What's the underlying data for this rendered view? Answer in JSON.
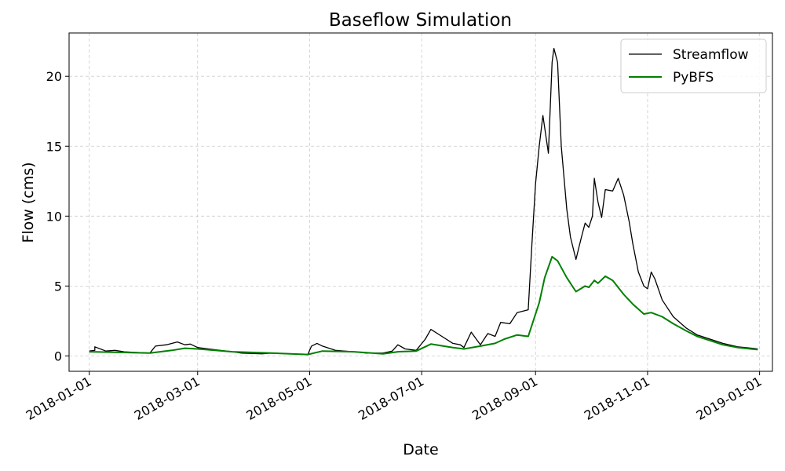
{
  "chart_data": {
    "type": "line",
    "title": "Baseflow Simulation",
    "xlabel": "Date",
    "ylabel": "Flow (cms)",
    "xlim": [
      "2017-12-21",
      "2019-01-08"
    ],
    "ylim": [
      -1.1,
      23.1
    ],
    "x_ticks": [
      "2018-01-01",
      "2018-03-01",
      "2018-05-01",
      "2018-07-01",
      "2018-09-01",
      "2018-11-01",
      "2019-01-01"
    ],
    "y_ticks": [
      0,
      5,
      10,
      15,
      20
    ],
    "grid": true,
    "legend": "upper right",
    "series": [
      {
        "name": "Streamflow",
        "color": "#000000",
        "points": [
          [
            "2018-01-01",
            0.35
          ],
          [
            "2018-01-04",
            0.4
          ],
          [
            "2018-01-10",
            0.35
          ],
          [
            "2018-01-15",
            0.4
          ],
          [
            "2018-01-20",
            0.3
          ],
          [
            "2018-01-27",
            0.25
          ],
          [
            "2018-02-03",
            0.2
          ],
          [
            "2018-02-06",
            0.7
          ],
          [
            "2018-02-12",
            0.8
          ],
          [
            "2018-02-18",
            1.0
          ],
          [
            "2018-02-22",
            0.8
          ],
          [
            "2018-02-25",
            0.85
          ],
          [
            "2018-03-01",
            0.6
          ],
          [
            "2018-03-10",
            0.45
          ],
          [
            "2018-03-20",
            0.3
          ],
          [
            "2018-03-25",
            0.2
          ],
          [
            "2018-04-05",
            0.15
          ],
          [
            "2018-04-10",
            0.2
          ],
          [
            "2018-04-20",
            0.15
          ],
          [
            "2018-04-30",
            0.1
          ],
          [
            "2018-05-02",
            0.7
          ],
          [
            "2018-05-05",
            0.9
          ],
          [
            "2018-05-08",
            0.7
          ],
          [
            "2018-05-15",
            0.4
          ],
          [
            "2018-05-25",
            0.3
          ],
          [
            "2018-06-01",
            0.2
          ],
          [
            "2018-06-10",
            0.2
          ],
          [
            "2018-06-15",
            0.35
          ],
          [
            "2018-06-18",
            0.8
          ],
          [
            "2018-06-22",
            0.5
          ],
          [
            "2018-06-28",
            0.4
          ],
          [
            "2018-07-03",
            1.2
          ],
          [
            "2018-07-06",
            1.9
          ],
          [
            "2018-07-12",
            1.4
          ],
          [
            "2018-07-18",
            0.9
          ],
          [
            "2018-07-22",
            0.8
          ],
          [
            "2018-07-24",
            0.6
          ],
          [
            "2018-07-28",
            1.7
          ],
          [
            "2018-08-02",
            0.8
          ],
          [
            "2018-08-06",
            1.6
          ],
          [
            "2018-08-10",
            1.4
          ],
          [
            "2018-08-13",
            2.4
          ],
          [
            "2018-08-18",
            2.3
          ],
          [
            "2018-08-22",
            3.1
          ],
          [
            "2018-08-28",
            3.3
          ],
          [
            "2018-08-30",
            7.9
          ],
          [
            "2018-09-01",
            12.3
          ],
          [
            "2018-09-03",
            15.0
          ],
          [
            "2018-09-05",
            17.2
          ],
          [
            "2018-09-08",
            14.5
          ],
          [
            "2018-09-10",
            21.0
          ],
          [
            "2018-09-11",
            22.0
          ],
          [
            "2018-09-13",
            21.0
          ],
          [
            "2018-09-15",
            15.0
          ],
          [
            "2018-09-18",
            10.5
          ],
          [
            "2018-09-20",
            8.5
          ],
          [
            "2018-09-23",
            6.9
          ],
          [
            "2018-09-26",
            8.5
          ],
          [
            "2018-09-28",
            9.5
          ],
          [
            "2018-09-30",
            9.2
          ],
          [
            "2018-10-02",
            10.0
          ],
          [
            "2018-10-03",
            12.7
          ],
          [
            "2018-10-05",
            11.0
          ],
          [
            "2018-10-07",
            9.9
          ],
          [
            "2018-10-09",
            11.9
          ],
          [
            "2018-10-13",
            11.8
          ],
          [
            "2018-10-16",
            12.7
          ],
          [
            "2018-10-19",
            11.5
          ],
          [
            "2018-10-22",
            9.6
          ],
          [
            "2018-10-24",
            8.0
          ],
          [
            "2018-10-27",
            6.0
          ],
          [
            "2018-10-30",
            5.0
          ],
          [
            "2018-11-01",
            4.8
          ],
          [
            "2018-11-03",
            6.0
          ],
          [
            "2018-11-05",
            5.5
          ],
          [
            "2018-11-09",
            4.0
          ],
          [
            "2018-11-15",
            2.8
          ],
          [
            "2018-11-22",
            2.0
          ],
          [
            "2018-11-28",
            1.5
          ],
          [
            "2018-12-05",
            1.2
          ],
          [
            "2018-12-12",
            0.9
          ],
          [
            "2018-12-20",
            0.65
          ],
          [
            "2018-12-28",
            0.55
          ],
          [
            "2018-12-31",
            0.5
          ],
          [
            "2018-01-04",
            0.65
          ]
        ]
      },
      {
        "name": "PyBFS",
        "color": "#008000",
        "points": [
          [
            "2018-01-01",
            0.3
          ],
          [
            "2018-01-20",
            0.25
          ],
          [
            "2018-02-03",
            0.2
          ],
          [
            "2018-02-15",
            0.4
          ],
          [
            "2018-02-22",
            0.55
          ],
          [
            "2018-03-01",
            0.5
          ],
          [
            "2018-03-20",
            0.3
          ],
          [
            "2018-04-10",
            0.2
          ],
          [
            "2018-04-30",
            0.1
          ],
          [
            "2018-05-08",
            0.35
          ],
          [
            "2018-05-25",
            0.3
          ],
          [
            "2018-06-10",
            0.15
          ],
          [
            "2018-06-18",
            0.3
          ],
          [
            "2018-06-28",
            0.35
          ],
          [
            "2018-07-06",
            0.85
          ],
          [
            "2018-07-18",
            0.6
          ],
          [
            "2018-07-24",
            0.5
          ],
          [
            "2018-08-02",
            0.7
          ],
          [
            "2018-08-10",
            0.9
          ],
          [
            "2018-08-15",
            1.2
          ],
          [
            "2018-08-22",
            1.5
          ],
          [
            "2018-08-28",
            1.4
          ],
          [
            "2018-09-03",
            3.8
          ],
          [
            "2018-09-06",
            5.6
          ],
          [
            "2018-09-10",
            7.1
          ],
          [
            "2018-09-13",
            6.8
          ],
          [
            "2018-09-18",
            5.6
          ],
          [
            "2018-09-23",
            4.6
          ],
          [
            "2018-09-28",
            5.0
          ],
          [
            "2018-09-30",
            4.9
          ],
          [
            "2018-10-03",
            5.4
          ],
          [
            "2018-10-05",
            5.2
          ],
          [
            "2018-10-09",
            5.7
          ],
          [
            "2018-10-13",
            5.4
          ],
          [
            "2018-10-19",
            4.4
          ],
          [
            "2018-10-24",
            3.7
          ],
          [
            "2018-10-30",
            3.0
          ],
          [
            "2018-11-03",
            3.1
          ],
          [
            "2018-11-09",
            2.8
          ],
          [
            "2018-11-15",
            2.3
          ],
          [
            "2018-11-22",
            1.8
          ],
          [
            "2018-11-28",
            1.4
          ],
          [
            "2018-12-05",
            1.1
          ],
          [
            "2018-12-12",
            0.8
          ],
          [
            "2018-12-20",
            0.6
          ],
          [
            "2018-12-31",
            0.45
          ]
        ]
      }
    ]
  }
}
